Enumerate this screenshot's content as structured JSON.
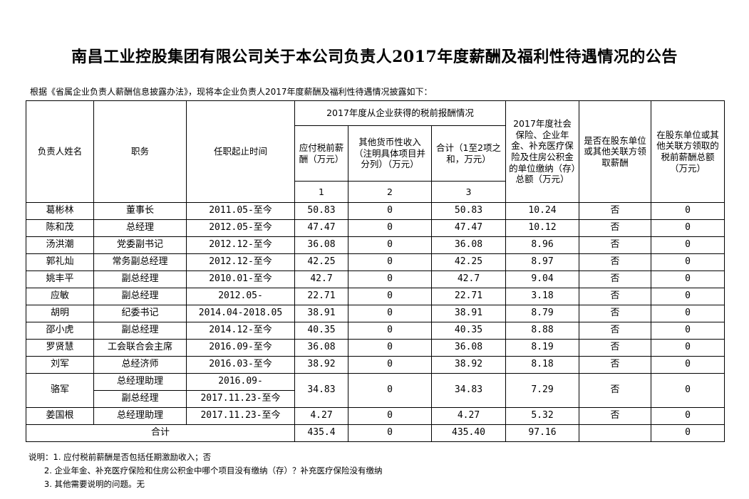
{
  "title": "南昌工业控股集团有限公司关于本公司负责人2017年度薪酬及福利性待遇情况的公告",
  "intro": "根据《省属企业负责人薪酬信息披露办法》，现将本企业负责人2017年度薪酬及福利性待遇情况披露如下：",
  "headers": {
    "name": "负责人姓名",
    "position": "职务",
    "term": "任职起止时间",
    "pretax_group": "2017年度从企业获得的税前报酬情况",
    "payable": "应付税前薪酬（万元）",
    "other_income": "其他货币性收入（注明具体项目并分列）（万元）",
    "subtotal": "合计（1至2项之和，万元）",
    "social": "2017年度社会保险、企业年金、补充医疗保险及住房公积金的单位缴纳（存）总额（万元）",
    "shareholder_flag": "是否在股东单位或其他关联方领取薪酬",
    "shareholder_amount": "在股东单位或其他关联方领取的税前薪酬总额（万元）",
    "col1": "1",
    "col2": "2",
    "col3": "3"
  },
  "rows": [
    {
      "name": "葛彬林",
      "position": "董事长",
      "term": "2011.05-至今",
      "payable": "50.83",
      "other": "0",
      "subtotal": "50.83",
      "social": "10.24",
      "flag": "否",
      "amount": "0"
    },
    {
      "name": "陈和茂",
      "position": "总经理",
      "term": "2012.05-至今",
      "payable": "47.47",
      "other": "0",
      "subtotal": "47.47",
      "social": "10.12",
      "flag": "否",
      "amount": "0"
    },
    {
      "name": "汤洪潮",
      "position": "党委副书记",
      "term": "2012.12-至今",
      "payable": "36.08",
      "other": "0",
      "subtotal": "36.08",
      "social": "8.96",
      "flag": "否",
      "amount": "0"
    },
    {
      "name": "郭礼灿",
      "position": "常务副总经理",
      "term": "2012.12-至今",
      "payable": "42.25",
      "other": "0",
      "subtotal": "42.25",
      "social": "8.97",
      "flag": "否",
      "amount": "0"
    },
    {
      "name": "姚丰平",
      "position": "副总经理",
      "term": "2010.01-至今",
      "payable": "42.7",
      "other": "0",
      "subtotal": "42.7",
      "social": "9.04",
      "flag": "否",
      "amount": "0"
    },
    {
      "name": "应敏",
      "position": "副总经理",
      "term": "2012.05-",
      "payable": "22.71",
      "other": "0",
      "subtotal": "22.71",
      "social": "3.18",
      "flag": "否",
      "amount": "0"
    },
    {
      "name": "胡明",
      "position": "纪委书记",
      "term": "2014.04-2018.05",
      "payable": "38.91",
      "other": "0",
      "subtotal": "38.91",
      "social": "8.79",
      "flag": "否",
      "amount": "0"
    },
    {
      "name": "邵小虎",
      "position": "副总经理",
      "term": "2014.12-至今",
      "payable": "40.35",
      "other": "0",
      "subtotal": "40.35",
      "social": "8.88",
      "flag": "否",
      "amount": "0"
    },
    {
      "name": "罗贤慧",
      "position": "工会联合会主席",
      "term": "2016.09-至今",
      "payable": "36.08",
      "other": "0",
      "subtotal": "36.08",
      "social": "8.19",
      "flag": "否",
      "amount": "0"
    },
    {
      "name": "刘军",
      "position": "总经济师",
      "term": "2016.03-至今",
      "payable": "38.92",
      "other": "0",
      "subtotal": "38.92",
      "social": "8.18",
      "flag": "否",
      "amount": "0"
    }
  ],
  "luojun": {
    "name": "骆军",
    "position1": "总经理助理",
    "term1": "2016.09-",
    "position2": "副总经理",
    "term2": "2017.11.23-至今",
    "payable": "34.83",
    "other": "0",
    "subtotal": "34.83",
    "social": "7.29",
    "flag": "否",
    "amount": "0"
  },
  "last_row": {
    "name": "姜国根",
    "position": "总经理助理",
    "term": "2017.11.23-至今",
    "payable": "4.27",
    "other": "0",
    "subtotal": "4.27",
    "social": "5.32",
    "flag": "否",
    "amount": "0"
  },
  "total": {
    "label": "合计",
    "payable": "435.4",
    "other": "0",
    "subtotal": "435.40",
    "social": "97.16",
    "amount": "0"
  },
  "notes": [
    "说明：1. 应付税前薪酬是否包括任期激励收入；否",
    "      2. 企业年金、补充医疗保险和住房公积金中哪个项目没有缴纳（存）？补充医疗保险没有缴纳",
    "      3. 其他需要说明的问题。无"
  ]
}
